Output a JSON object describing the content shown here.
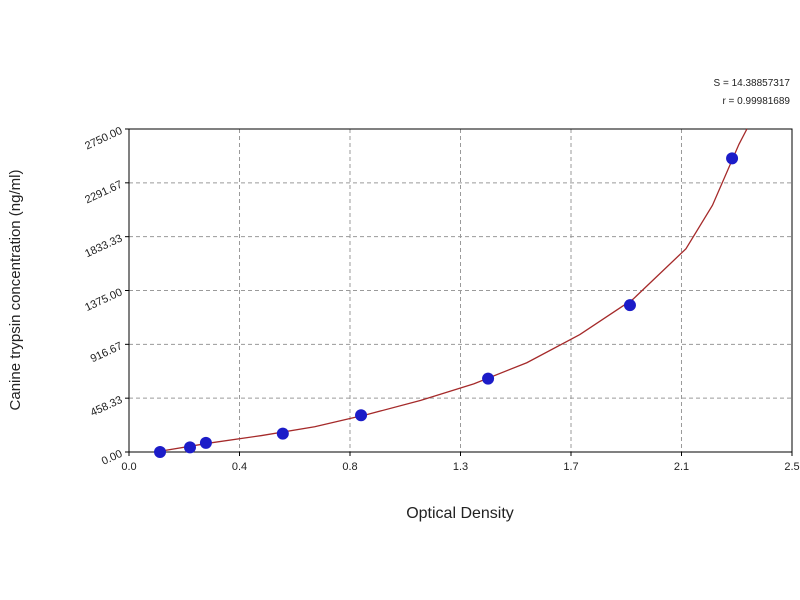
{
  "chart_data": {
    "type": "scatter",
    "xlabel": "Optical Density",
    "ylabel": "Canine trypsin concentration (ng/ml)",
    "annotations": [
      "S = 14.38857317",
      "r = 0.99981689"
    ],
    "xlim": [
      0,
      2.5
    ],
    "xticks": [
      {
        "value": 0,
        "label": "0.0"
      },
      {
        "value": 0.4167,
        "label": "0.4"
      },
      {
        "value": 0.8333,
        "label": "0.8"
      },
      {
        "value": 1.25,
        "label": "1.3"
      },
      {
        "value": 1.6667,
        "label": "1.7"
      },
      {
        "value": 2.0833,
        "label": "2.1"
      },
      {
        "value": 2.5,
        "label": "2.5"
      }
    ],
    "ylim": [
      0,
      2750
    ],
    "yticks": [
      {
        "value": 0,
        "label": "0.00"
      },
      {
        "value": 458.33,
        "label": "458.33"
      },
      {
        "value": 916.67,
        "label": "916.67"
      },
      {
        "value": 1375,
        "label": "1375.00"
      },
      {
        "value": 1833.33,
        "label": "1833.33"
      },
      {
        "value": 2291.67,
        "label": "2291.67"
      },
      {
        "value": 2750,
        "label": "2750.00"
      }
    ],
    "grid": true,
    "series": [
      {
        "mode": "markers",
        "color": "#1c1cc8",
        "x": [
          0.117,
          0.23,
          0.29,
          0.58,
          0.875,
          1.354,
          1.889,
          2.274
        ],
        "values": [
          0,
          39,
          78,
          156,
          312.5,
          625,
          1250,
          2500
        ]
      },
      {
        "mode": "line",
        "color": "#a52a2a",
        "x": [
          0.1,
          0.3,
          0.5,
          0.7,
          0.9,
          1.1,
          1.3,
          1.5,
          1.7,
          1.9,
          2.1,
          2.2,
          2.3,
          2.33
        ],
        "values": [
          0,
          75,
          140,
          215,
          320,
          440,
          580,
          760,
          1000,
          1300,
          1730,
          2100,
          2620,
          2750
        ]
      }
    ]
  }
}
